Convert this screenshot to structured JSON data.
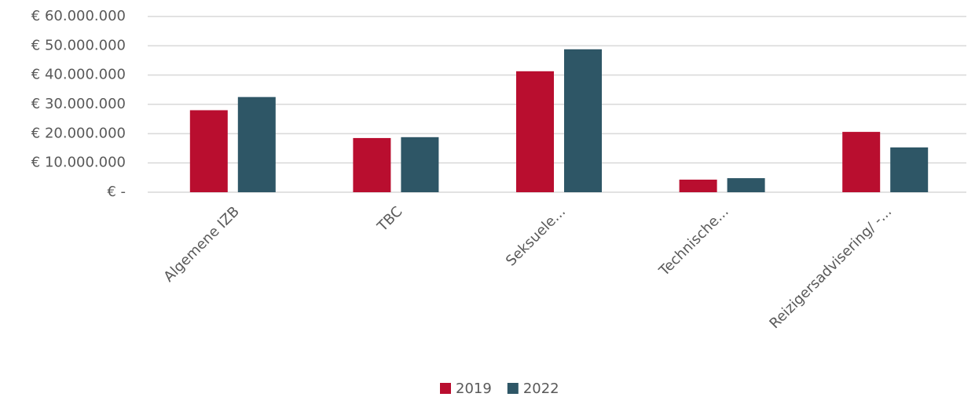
{
  "chart_data": {
    "type": "bar",
    "categories": [
      "Algemene IZB",
      "TBC",
      "Seksuele...",
      "Technische...",
      "Reizigersadvisering/ -..."
    ],
    "series": [
      {
        "name": "2019",
        "color": "#b90e2f",
        "values": [
          28000000,
          18500000,
          41300000,
          4300000,
          20600000
        ]
      },
      {
        "name": "2022",
        "color": "#2e5666",
        "values": [
          32500000,
          18800000,
          48800000,
          4800000,
          15300000
        ]
      }
    ],
    "ylim": [
      0,
      60000000
    ],
    "yticks": [
      {
        "value": 0,
        "label": "€ -"
      },
      {
        "value": 10000000,
        "label": "€ 10.000.000"
      },
      {
        "value": 20000000,
        "label": "€ 20.000.000"
      },
      {
        "value": 30000000,
        "label": "€ 30.000.000"
      },
      {
        "value": 40000000,
        "label": "€ 40.000.000"
      },
      {
        "value": 50000000,
        "label": "€ 50.000.000"
      },
      {
        "value": 60000000,
        "label": "€ 60.000.000"
      }
    ],
    "grid": true,
    "legend": "bottom"
  }
}
